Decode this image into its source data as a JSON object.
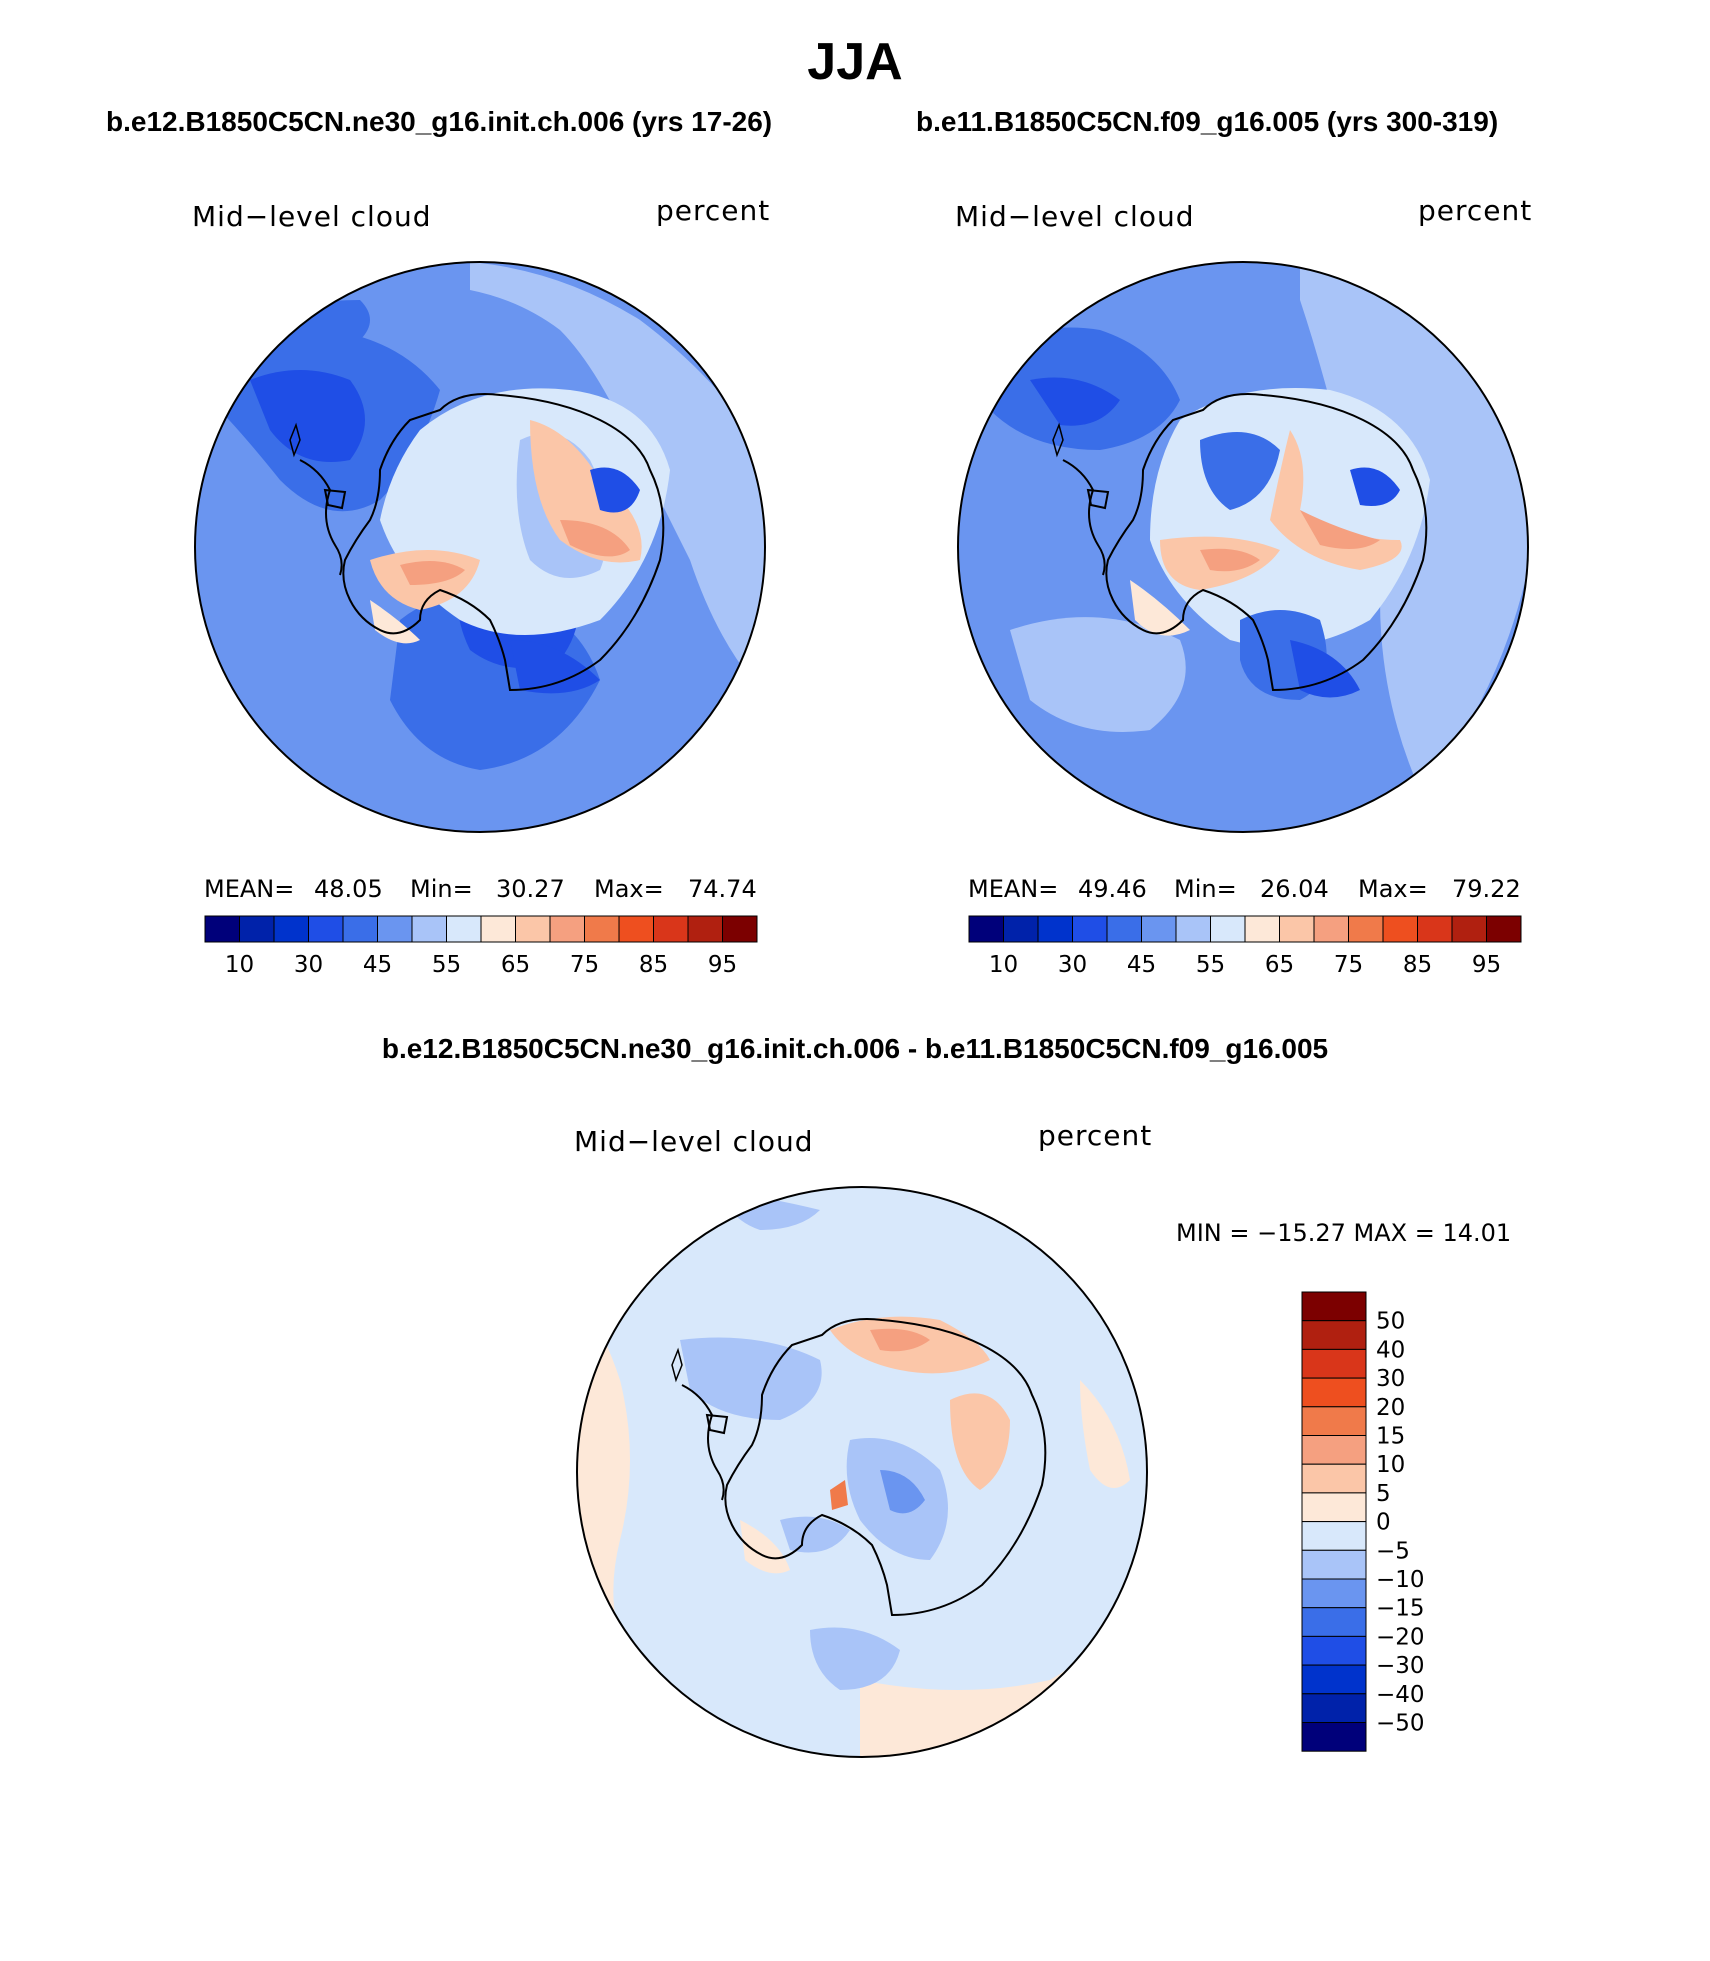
{
  "title": "JJA",
  "panels": {
    "case1": {
      "header": "b.e12.B1850C5CN.ne30_g16.init.ch.006 (yrs 17-26)",
      "variable": "Mid−level cloud",
      "units": "percent",
      "mean_label": "MEAN=",
      "mean": "48.05",
      "min_label": "Min=",
      "min": "30.27",
      "max_label": "Max=",
      "max": "74.74"
    },
    "case2": {
      "header": "b.e11.B1850C5CN.f09_g16.005 (yrs 300-319)",
      "variable": "Mid−level cloud",
      "units": "percent",
      "mean_label": "MEAN=",
      "mean": "49.46",
      "min_label": "Min=",
      "min": "26.04",
      "max_label": "Max=",
      "max": "79.22"
    },
    "diff": {
      "header": "b.e12.B1850C5CN.ne30_g16.init.ch.006 - b.e11.B1850C5CN.f09_g16.005",
      "variable": "Mid−level cloud",
      "units": "percent",
      "minmax": "MIN = −15.27 MAX =   14.01"
    }
  },
  "colorbars": {
    "cloud": {
      "colors": [
        "#00007a",
        "#0022aa",
        "#0033cc",
        "#1f4ee6",
        "#3a6ee8",
        "#6a95f0",
        "#a9c4f8",
        "#d8e8fb",
        "#fde8d8",
        "#fbc6a8",
        "#f5a080",
        "#f07a4a",
        "#ee4f1f",
        "#d9361a",
        "#b02010",
        "#7c0000"
      ],
      "tick_labels": [
        "10",
        "30",
        "45",
        "55",
        "65",
        "75",
        "85",
        "95"
      ]
    },
    "diff": {
      "colors": [
        "#00007a",
        "#0022aa",
        "#0033cc",
        "#1f4ee6",
        "#3a6ee8",
        "#6a95f0",
        "#a9c4f8",
        "#d8e8fb",
        "#fde8d8",
        "#fbc6a8",
        "#f5a080",
        "#f07a4a",
        "#ee4f1f",
        "#d9361a",
        "#b02010",
        "#7c0000"
      ],
      "tick_labels": [
        "−50",
        "−40",
        "−30",
        "−20",
        "−15",
        "−10",
        "−5",
        "0",
        "5",
        "10",
        "15",
        "20",
        "30",
        "40",
        "50"
      ]
    }
  }
}
